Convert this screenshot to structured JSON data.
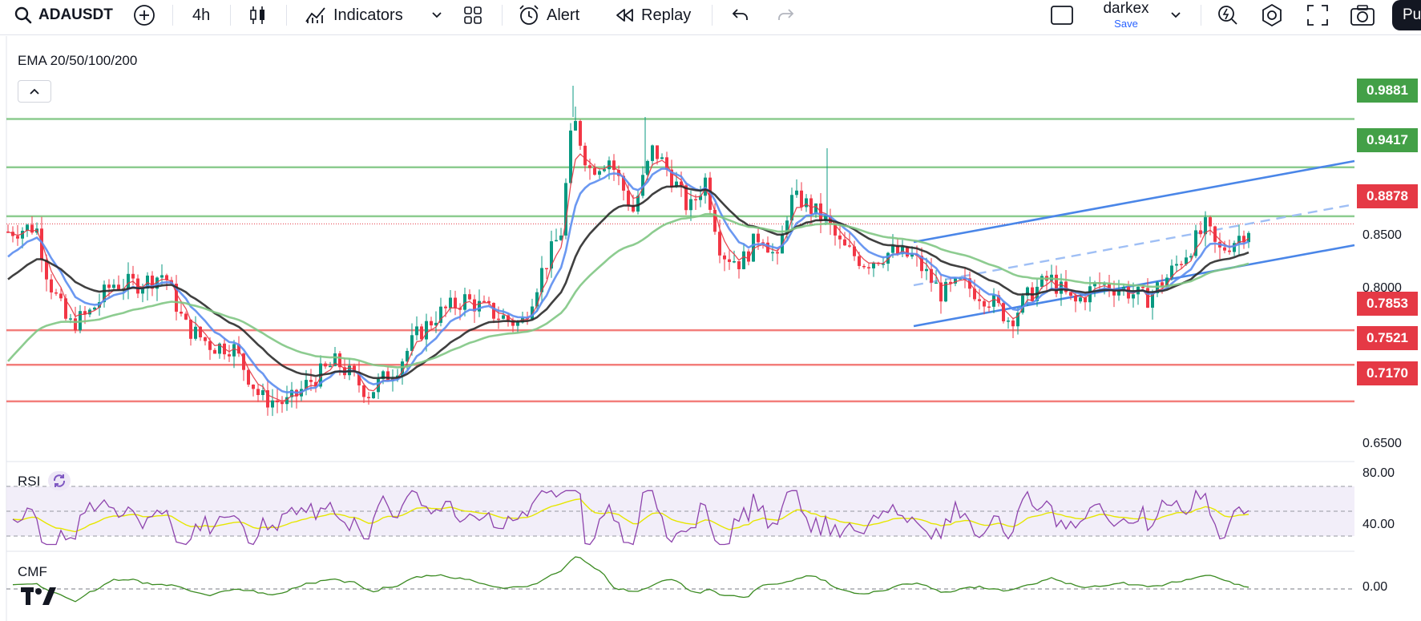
{
  "toolbar": {
    "symbol": "ADAUSDT",
    "interval": "4h",
    "indicators_label": "Indicators",
    "alert_label": "Alert",
    "replay_label": "Replay",
    "layout_name": "darkex",
    "save_label": "Save",
    "publish_label": "Pu"
  },
  "legend": {
    "main_indicator": "EMA 20/50/100/200",
    "rsi_label": "RSI",
    "cmf_label": "CMF"
  },
  "price_levels": [
    {
      "value": "0.9881",
      "color": "#43a047"
    },
    {
      "value": "0.9417",
      "color": "#43a047"
    },
    {
      "value": "0.8878",
      "color": "#e53945"
    },
    {
      "value": "0.7853",
      "color": "#e53945"
    },
    {
      "value": "0.7521",
      "color": "#e53945"
    },
    {
      "value": "0.7170",
      "color": "#e53945"
    }
  ],
  "price_axis": [
    "0.8500",
    "0.8000",
    "0.6500"
  ],
  "rsi_axis": [
    "80.00",
    "40.00"
  ],
  "cmf_axis": [
    "0.00"
  ],
  "colors": {
    "up": "#089981",
    "down": "#f23645",
    "ema20": "#e53945",
    "ema50": "#5b8def",
    "ema100": "#2b2b2b",
    "ema200": "#81c784",
    "channel": "#4a86e8",
    "rsi": "#8e44ad",
    "rsi_ma": "#e6e600",
    "cmf": "#3b8b22"
  }
}
